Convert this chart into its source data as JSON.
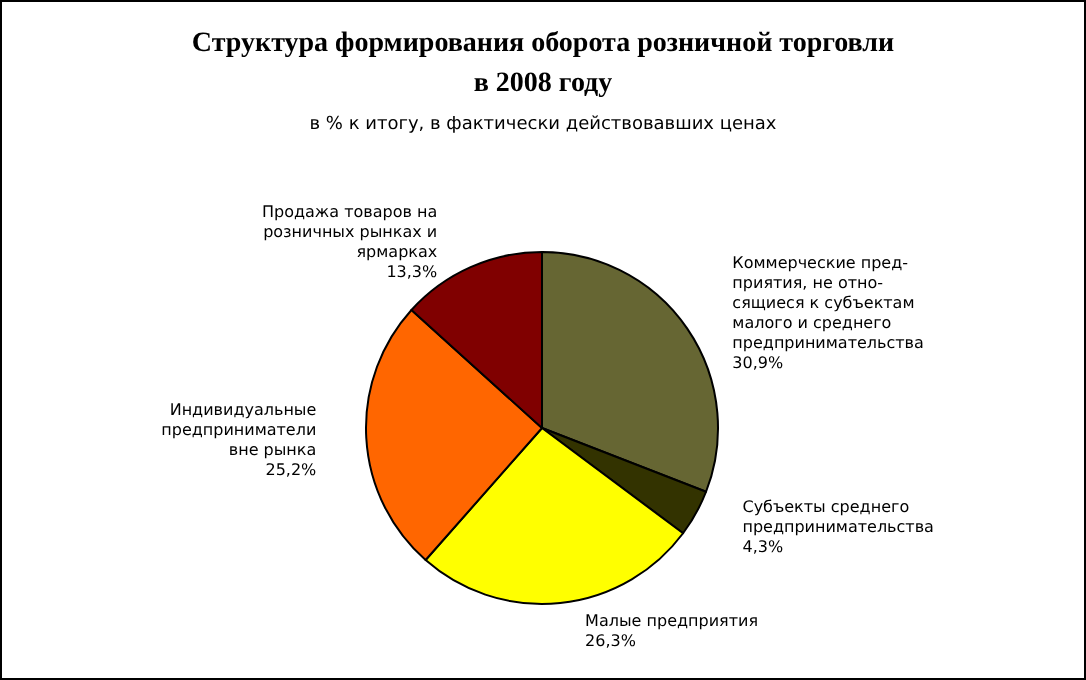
{
  "chart_data": {
    "type": "pie",
    "title": "Структура формирования оборота розничной торговли\nв 2008 году",
    "subtitle": "в % к итогу, в фактически действовавших ценах",
    "categories": [
      "Коммерческие пред-\nприятия, не отно-\nсящиеся к субъектам\nмалого и среднего\nпредпринимательства",
      "Субъекты среднего\nпредпринимательства",
      "Малые предприятия",
      "Индивидуальные\nпредприниматели\nвне рынка",
      "Продажа товаров на\nрозничных рынках и\nярмарках"
    ],
    "values": [
      30.9,
      4.3,
      26.3,
      25.2,
      13.3
    ],
    "colors": [
      "#666633",
      "#333300",
      "#ffff00",
      "#ff6600",
      "#800000"
    ],
    "value_labels": [
      "30,9%",
      "4,3%",
      "26,3%",
      "25,2%",
      "13,3%"
    ],
    "legend": false
  }
}
